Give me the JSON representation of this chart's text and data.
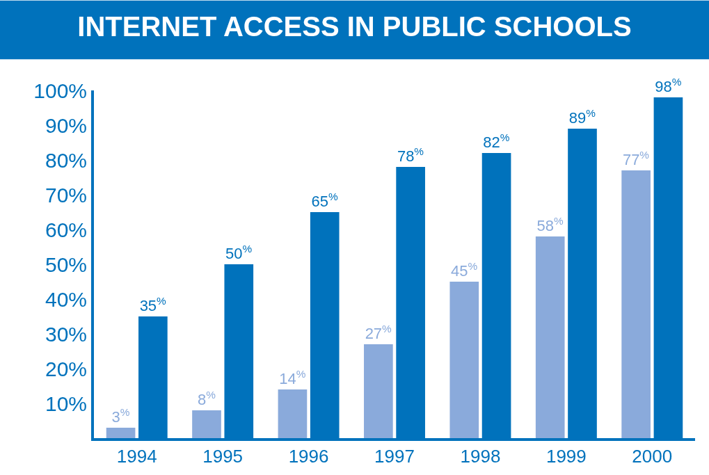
{
  "chart_data": {
    "type": "bar",
    "title": "INTERNET ACCESS IN PUBLIC SCHOOLS",
    "categories": [
      "1994",
      "1995",
      "1996",
      "1997",
      "1998",
      "1999",
      "2000"
    ],
    "series": [
      {
        "color": "#8aaadb",
        "values": [
          3,
          8,
          14,
          27,
          45,
          58,
          77
        ],
        "value_labels": [
          "3$^{%}$",
          "8$^{%}$",
          "14$^{%}$",
          "27$^{%}$",
          "45$^{%}$",
          "58$^{%}$",
          "77$^{%}$"
        ]
      },
      {
        "color": "#0072bc",
        "values": [
          35,
          50,
          65,
          78,
          82,
          89,
          98
        ],
        "value_labels": [
          "35$^{%}$",
          "50$^{%}$",
          "65$^{%}$",
          "78$^{%}$",
          "82$^{%}$",
          "89$^{%}$",
          "98$^{%}$"
        ]
      }
    ],
    "ylim": [
      0,
      100
    ],
    "yticks": [
      {
        "value": 10,
        "label": "10%"
      },
      {
        "value": 20,
        "label": "20%"
      },
      {
        "value": 30,
        "label": "30%"
      },
      {
        "value": 40,
        "label": "40%"
      },
      {
        "value": 50,
        "label": "50%"
      },
      {
        "value": 60,
        "label": "60%"
      },
      {
        "value": 70,
        "label": "70%"
      },
      {
        "value": 80,
        "label": "80%"
      },
      {
        "value": 90,
        "label": "90%"
      },
      {
        "value": 100,
        "label": "100%"
      }
    ],
    "legend": false
  }
}
